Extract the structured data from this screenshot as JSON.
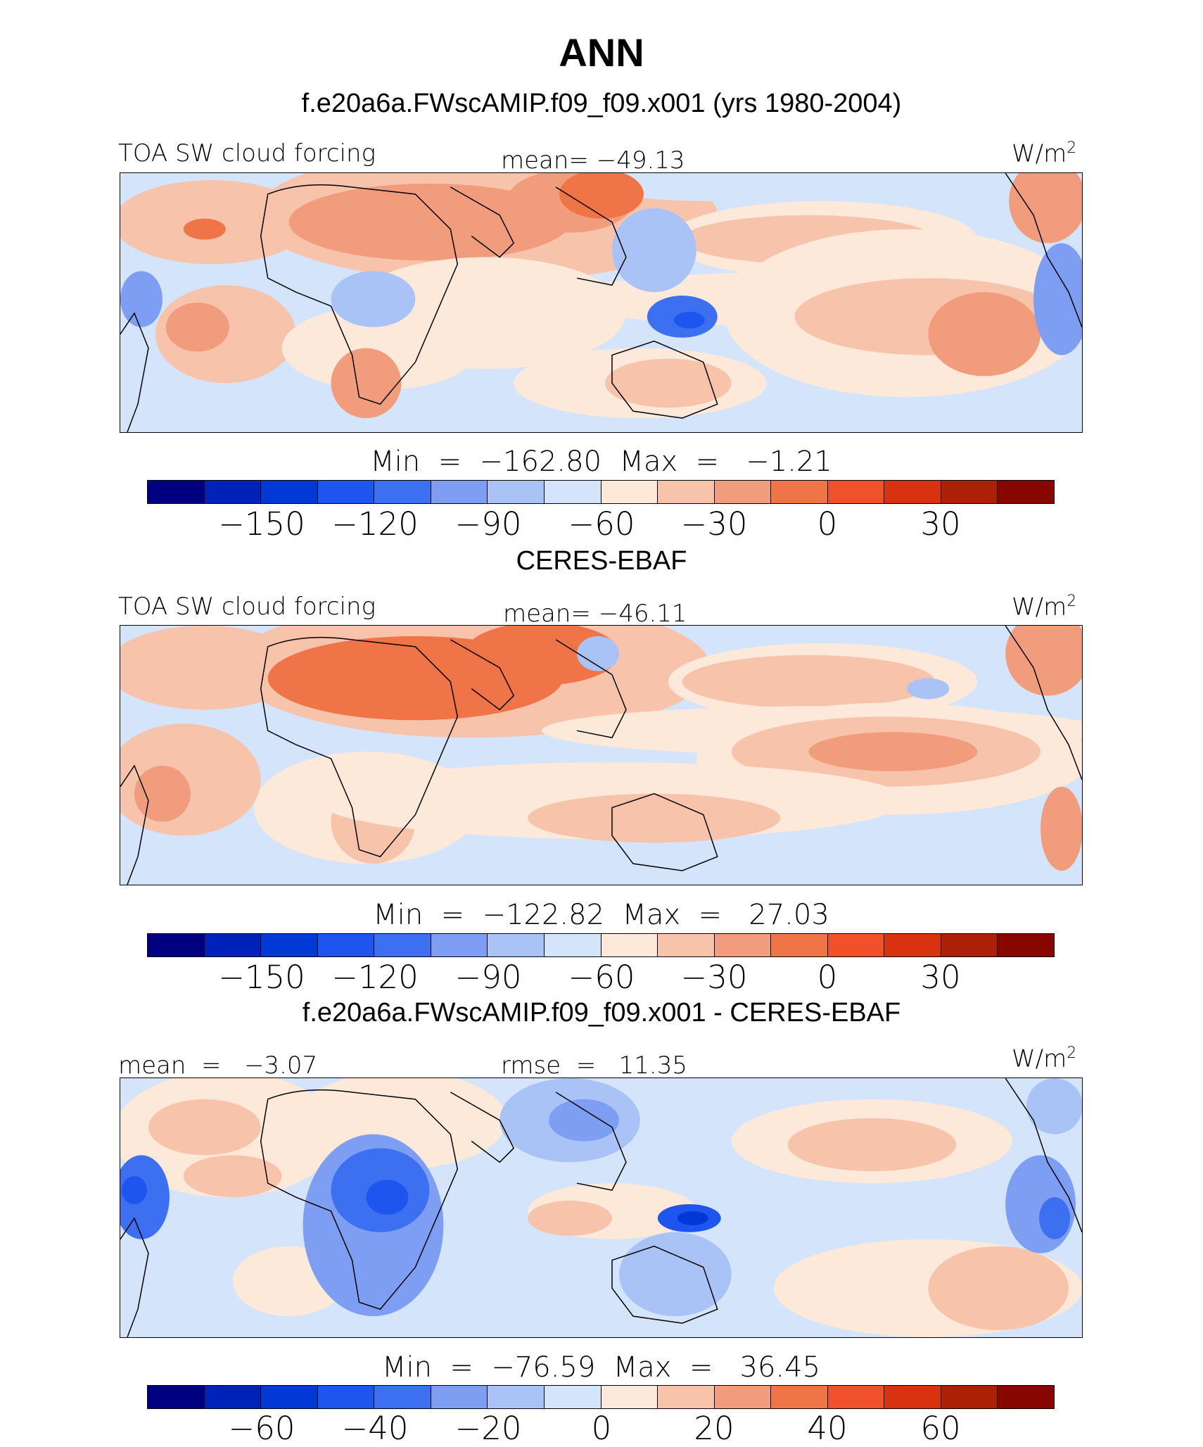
{
  "header": {
    "season": "ANN",
    "test_title": "f.e20a6a.FWscAMIP.f09_f09.x001 (yrs 1980-2004)"
  },
  "panels": [
    {
      "id": "test",
      "variable": "TOA SW cloud forcing",
      "stat_left": "",
      "stat_center": "mean= −49.13",
      "units": "W/m",
      "units_exp": "2",
      "minmax": "Min  =  −162.80  Max  =   −1.21",
      "colorbar": {
        "colors": [
          "#000080",
          "#0022b8",
          "#0039d6",
          "#1f55ef",
          "#3d70f0",
          "#7d9ef3",
          "#a9c3f7",
          "#d3e4fb",
          "#fde9da",
          "#f8c3ab",
          "#f19c7c",
          "#ef7447",
          "#f0502a",
          "#d93210",
          "#ad2008",
          "#870600"
        ],
        "ticks": [
          "−150",
          "−120",
          "−90",
          "−60",
          "−30",
          "0",
          "30"
        ]
      }
    },
    {
      "id": "obs",
      "title": "CERES-EBAF",
      "variable": "TOA SW cloud forcing",
      "stat_left": "",
      "stat_center": "mean= −46.11",
      "units": "W/m",
      "units_exp": "2",
      "minmax": "Min  =  −122.82  Max  =   27.03",
      "colorbar": {
        "colors": [
          "#000080",
          "#0022b8",
          "#0039d6",
          "#1f55ef",
          "#3d70f0",
          "#7d9ef3",
          "#a9c3f7",
          "#d3e4fb",
          "#fde9da",
          "#f8c3ab",
          "#f19c7c",
          "#ef7447",
          "#f0502a",
          "#d93210",
          "#ad2008",
          "#870600"
        ],
        "ticks": [
          "−150",
          "−120",
          "−90",
          "−60",
          "−30",
          "0",
          "30"
        ]
      }
    },
    {
      "id": "diff",
      "title": "f.e20a6a.FWscAMIP.f09_f09.x001 - CERES-EBAF",
      "variable": "",
      "stat_left": "mean  =   −3.07",
      "stat_center": "rmse  =   11.35",
      "units": "W/m",
      "units_exp": "2",
      "minmax": "Min  =  −76.59  Max  =   36.45",
      "colorbar": {
        "colors": [
          "#000080",
          "#0022b8",
          "#0039d6",
          "#1f55ef",
          "#3d70f0",
          "#7d9ef3",
          "#a9c3f7",
          "#d3e4fb",
          "#fde9da",
          "#f8c3ab",
          "#f19c7c",
          "#ef7447",
          "#f0502a",
          "#d93210",
          "#ad2008",
          "#870600"
        ],
        "ticks": [
          "−60",
          "−40",
          "−20",
          "0",
          "20",
          "40",
          "60"
        ]
      }
    }
  ]
}
